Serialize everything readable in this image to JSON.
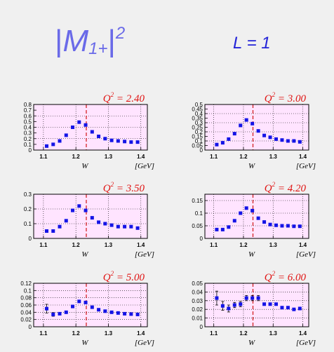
{
  "header": {
    "quantity_symbol": "M",
    "quantity_subscript": "1+",
    "quantity_power": "2",
    "multipole_label": "L = 1"
  },
  "colors": {
    "background": "#f0f0f0",
    "plot_area": "#ffe4ff",
    "points": "#1414e6",
    "q2_label": "#e01414",
    "resonance_line": "#d21414",
    "header_m": "#6a6ae8",
    "header_l": "#2424d8"
  },
  "chart_data": [
    {
      "type": "scatter",
      "q2": "2.40",
      "x_label": "W",
      "x_unit": "[GeV]",
      "xlim": [
        1.07,
        1.42
      ],
      "ylim": [
        0,
        0.8
      ],
      "x_ticks": [
        "1.1",
        "1.2",
        "1.3",
        "1.4"
      ],
      "y_ticks": [
        "0",
        "0.1",
        "0.2",
        "0.3",
        "0.4",
        "0.5",
        "0.6",
        "0.7",
        "0.8"
      ],
      "y_grid": [
        0.2,
        0.4,
        0.6
      ],
      "x": [
        1.11,
        1.13,
        1.15,
        1.17,
        1.19,
        1.21,
        1.23,
        1.25,
        1.27,
        1.29,
        1.31,
        1.33,
        1.35,
        1.37,
        1.39
      ],
      "y": [
        0.07,
        0.1,
        0.16,
        0.26,
        0.4,
        0.49,
        0.44,
        0.32,
        0.24,
        0.2,
        0.17,
        0.16,
        0.15,
        0.14,
        0.14
      ],
      "err": [
        0.01,
        0.01,
        0.01,
        0.01,
        0.01,
        0.01,
        0.01,
        0.01,
        0.01,
        0.01,
        0.01,
        0.01,
        0.01,
        0.01,
        0.01
      ]
    },
    {
      "type": "scatter",
      "q2": "3.00",
      "x_label": "W",
      "x_unit": "[GeV]",
      "xlim": [
        1.07,
        1.42
      ],
      "ylim": [
        0,
        0.5
      ],
      "x_ticks": [
        "1.1",
        "1.2",
        "1.3",
        "1.4"
      ],
      "y_ticks": [
        "0",
        "0.05",
        "0.1",
        "0.15",
        "0.2",
        "0.25",
        "0.3",
        "0.35",
        "0.4",
        "0.45",
        "0.5"
      ],
      "y_grid": [
        0.1,
        0.2,
        0.3,
        0.4
      ],
      "x": [
        1.11,
        1.13,
        1.15,
        1.17,
        1.19,
        1.21,
        1.23,
        1.25,
        1.27,
        1.29,
        1.31,
        1.33,
        1.35,
        1.37,
        1.39
      ],
      "y": [
        0.06,
        0.08,
        0.12,
        0.18,
        0.27,
        0.33,
        0.29,
        0.21,
        0.16,
        0.14,
        0.12,
        0.11,
        0.1,
        0.1,
        0.09
      ],
      "err": [
        0.01,
        0.01,
        0.01,
        0.01,
        0.01,
        0.01,
        0.01,
        0.01,
        0.01,
        0.01,
        0.01,
        0.01,
        0.01,
        0.01,
        0.01
      ]
    },
    {
      "type": "scatter",
      "q2": "3.50",
      "x_label": "W",
      "x_unit": "[GeV]",
      "xlim": [
        1.07,
        1.42
      ],
      "ylim": [
        0,
        0.3
      ],
      "x_ticks": [
        "1.1",
        "1.2",
        "1.3",
        "1.4"
      ],
      "y_ticks": [
        "0",
        "0.1",
        "0.2",
        "0.3"
      ],
      "y_grid": [
        0.1,
        0.2
      ],
      "x": [
        1.11,
        1.13,
        1.15,
        1.17,
        1.19,
        1.21,
        1.23,
        1.25,
        1.27,
        1.29,
        1.31,
        1.33,
        1.35,
        1.37,
        1.39
      ],
      "y": [
        0.05,
        0.05,
        0.08,
        0.12,
        0.19,
        0.22,
        0.19,
        0.14,
        0.11,
        0.1,
        0.09,
        0.08,
        0.08,
        0.08,
        0.07
      ],
      "err": [
        0.006,
        0.006,
        0.006,
        0.006,
        0.006,
        0.006,
        0.006,
        0.006,
        0.006,
        0.006,
        0.006,
        0.006,
        0.006,
        0.006,
        0.006
      ]
    },
    {
      "type": "scatter",
      "q2": "4.20",
      "x_label": "W",
      "x_unit": "[GeV]",
      "xlim": [
        1.07,
        1.42
      ],
      "ylim": [
        0,
        0.175
      ],
      "x_ticks": [
        "1.1",
        "1.2",
        "1.3",
        "1.4"
      ],
      "y_ticks": [
        "0",
        "0.05",
        "0.1",
        "0.15"
      ],
      "y_grid": [
        0.05,
        0.1,
        0.15
      ],
      "x": [
        1.11,
        1.13,
        1.15,
        1.17,
        1.19,
        1.21,
        1.23,
        1.25,
        1.27,
        1.29,
        1.31,
        1.33,
        1.35,
        1.37,
        1.39
      ],
      "y": [
        0.035,
        0.035,
        0.045,
        0.07,
        0.1,
        0.12,
        0.11,
        0.08,
        0.065,
        0.055,
        0.052,
        0.05,
        0.05,
        0.048,
        0.048
      ],
      "err": [
        0.004,
        0.004,
        0.004,
        0.004,
        0.004,
        0.004,
        0.004,
        0.004,
        0.004,
        0.004,
        0.004,
        0.004,
        0.004,
        0.004,
        0.004
      ]
    },
    {
      "type": "scatter",
      "q2": "5.00",
      "x_label": "W",
      "x_unit": "[GeV]",
      "xlim": [
        1.07,
        1.42
      ],
      "ylim": [
        0,
        0.12
      ],
      "x_ticks": [
        "1.1",
        "1.2",
        "1.3",
        "1.4"
      ],
      "y_ticks": [
        "0",
        "0.02",
        "0.04",
        "0.06",
        "0.08",
        "0.1",
        "0.12"
      ],
      "y_grid": [
        0.02,
        0.04,
        0.06,
        0.08,
        0.1
      ],
      "x": [
        1.11,
        1.13,
        1.15,
        1.17,
        1.19,
        1.21,
        1.23,
        1.25,
        1.27,
        1.29,
        1.31,
        1.33,
        1.35,
        1.37,
        1.39
      ],
      "y": [
        0.05,
        0.034,
        0.036,
        0.04,
        0.056,
        0.07,
        0.067,
        0.054,
        0.047,
        0.043,
        0.04,
        0.038,
        0.036,
        0.035,
        0.034
      ],
      "err": [
        0.012,
        0.005,
        0.004,
        0.003,
        0.003,
        0.003,
        0.003,
        0.003,
        0.002,
        0.002,
        0.002,
        0.002,
        0.002,
        0.002,
        0.002
      ]
    },
    {
      "type": "scatter",
      "q2": "6.00",
      "x_label": "W",
      "x_unit": "[GeV]",
      "xlim": [
        1.07,
        1.42
      ],
      "ylim": [
        0,
        0.05
      ],
      "x_ticks": [
        "1.1",
        "1.2",
        "1.3",
        "1.4"
      ],
      "y_ticks": [
        "0",
        "0.01",
        "0.02",
        "0.03",
        "0.04",
        "0.05"
      ],
      "y_grid": [
        0.01,
        0.02,
        0.03,
        0.04
      ],
      "x": [
        1.11,
        1.13,
        1.15,
        1.17,
        1.19,
        1.21,
        1.23,
        1.25,
        1.27,
        1.29,
        1.31,
        1.33,
        1.35,
        1.37,
        1.39
      ],
      "y": [
        0.033,
        0.024,
        0.021,
        0.025,
        0.026,
        0.033,
        0.033,
        0.033,
        0.026,
        0.026,
        0.026,
        0.022,
        0.022,
        0.02,
        0.021
      ],
      "err": [
        0.008,
        0.005,
        0.004,
        0.003,
        0.003,
        0.003,
        0.003,
        0.003,
        0.002,
        0.002,
        0.002,
        0.002,
        0.002,
        0.002,
        0.002
      ]
    }
  ]
}
